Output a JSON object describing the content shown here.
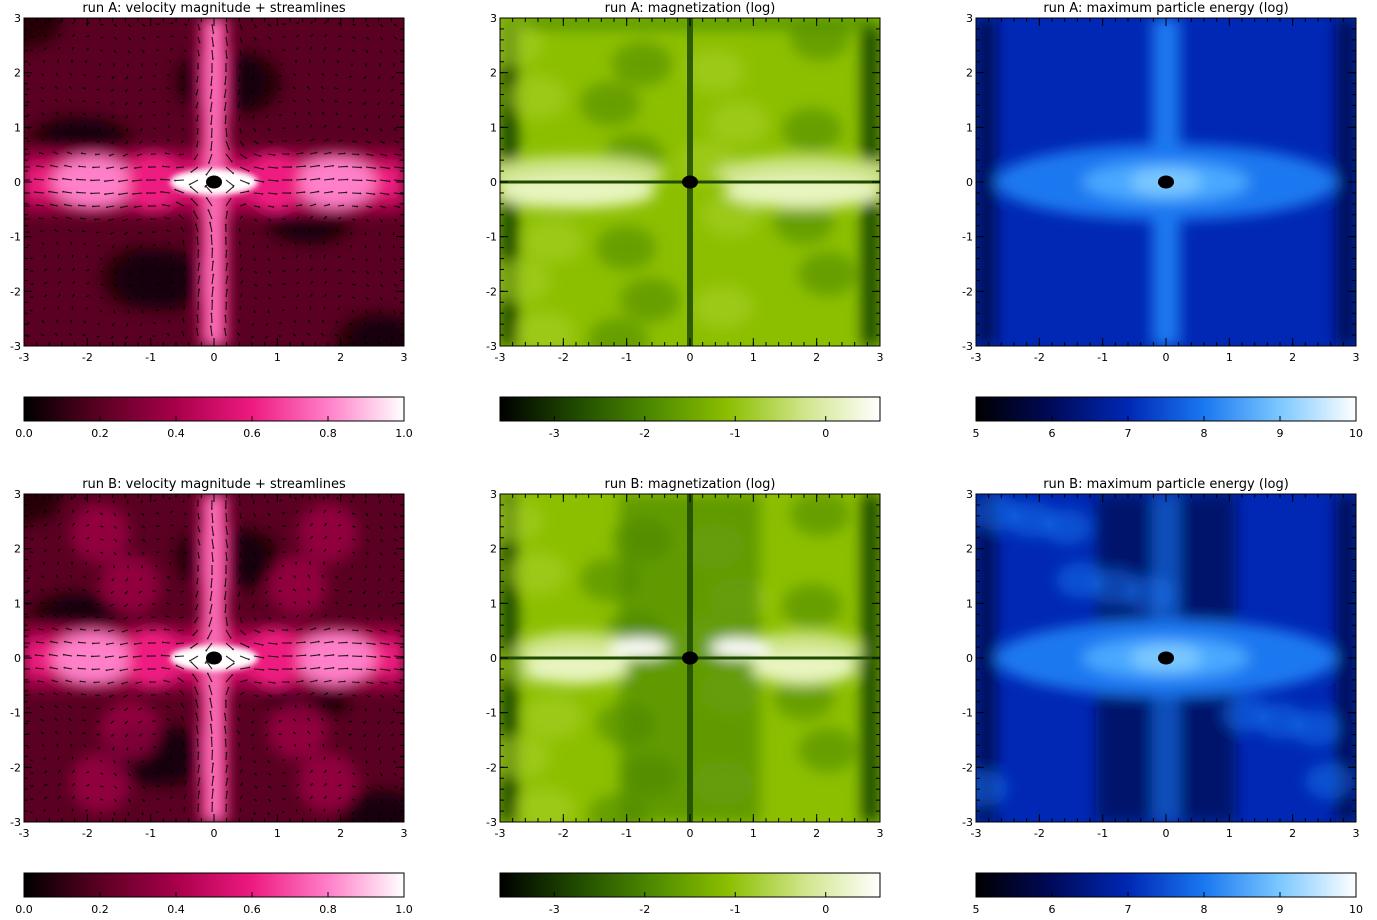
{
  "chart_data": [
    {
      "type": "heatmap",
      "title": "run A: velocity magnitude + streamlines",
      "xlim": [
        -3,
        3
      ],
      "ylim": [
        -3,
        3
      ],
      "x_ticks": [
        "-3",
        "-2",
        "-1",
        "0",
        "1",
        "2",
        "3"
      ],
      "y_ticks": [
        "-3",
        "-2",
        "-1",
        "0",
        "1",
        "2",
        "3"
      ],
      "colormap": [
        "#000000",
        "#5a0022",
        "#a8004a",
        "#ee1a80",
        "#ff7fc8",
        "#ffffff"
      ],
      "colorbar": {
        "range": [
          0.0,
          1.0
        ],
        "ticks": [
          "0.0",
          "0.2",
          "0.4",
          "0.6",
          "0.8",
          "1.0"
        ]
      },
      "overlay": "streamline-arrows",
      "theme": "pink",
      "run": "A"
    },
    {
      "type": "heatmap",
      "title": "run A: magnetization (log)",
      "xlim": [
        -3,
        3
      ],
      "ylim": [
        -3,
        3
      ],
      "x_ticks": [
        "-3",
        "-2",
        "-1",
        "0",
        "1",
        "2",
        "3"
      ],
      "y_ticks": [
        "-3",
        "-2",
        "-1",
        "0",
        "1",
        "2",
        "3"
      ],
      "colormap": [
        "#000000",
        "#1f4a00",
        "#4e8a00",
        "#8cbf00",
        "#cfe58a",
        "#ffffff"
      ],
      "colorbar": {
        "range": [
          -3.6,
          0.6
        ],
        "ticks": [
          "-3",
          "-2",
          "-1",
          "0"
        ]
      },
      "theme": "green",
      "run": "A"
    },
    {
      "type": "heatmap",
      "title": "run A: maximum particle energy (log)",
      "xlim": [
        -3,
        3
      ],
      "ylim": [
        -3,
        3
      ],
      "x_ticks": [
        "-3",
        "-2",
        "-1",
        "0",
        "1",
        "2",
        "3"
      ],
      "y_ticks": [
        "-3",
        "-2",
        "-1",
        "0",
        "1",
        "2",
        "3"
      ],
      "colormap": [
        "#000000",
        "#000a5a",
        "#0028b4",
        "#1a78f0",
        "#7cc8ff",
        "#ffffff"
      ],
      "colorbar": {
        "range": [
          5,
          10
        ],
        "ticks": [
          "5",
          "6",
          "7",
          "8",
          "9",
          "10"
        ]
      },
      "theme": "blue",
      "run": "A"
    },
    {
      "type": "heatmap",
      "title": "run B: velocity magnitude + streamlines",
      "xlim": [
        -3,
        3
      ],
      "ylim": [
        -3,
        3
      ],
      "x_ticks": [
        "-3",
        "-2",
        "-1",
        "0",
        "1",
        "2",
        "3"
      ],
      "y_ticks": [
        "-3",
        "-2",
        "-1",
        "0",
        "1",
        "2",
        "3"
      ],
      "colormap": [
        "#000000",
        "#5a0022",
        "#a8004a",
        "#ee1a80",
        "#ff7fc8",
        "#ffffff"
      ],
      "colorbar": {
        "range": [
          0.0,
          1.0
        ],
        "ticks": [
          "0.0",
          "0.2",
          "0.4",
          "0.6",
          "0.8",
          "1.0"
        ]
      },
      "overlay": "streamline-arrows",
      "theme": "pink",
      "run": "B"
    },
    {
      "type": "heatmap",
      "title": "run B: magnetization (log)",
      "xlim": [
        -3,
        3
      ],
      "ylim": [
        -3,
        3
      ],
      "x_ticks": [
        "-3",
        "-2",
        "-1",
        "0",
        "1",
        "2",
        "3"
      ],
      "y_ticks": [
        "-3",
        "-2",
        "-1",
        "0",
        "1",
        "2",
        "3"
      ],
      "colormap": [
        "#000000",
        "#1f4a00",
        "#4e8a00",
        "#8cbf00",
        "#cfe58a",
        "#ffffff"
      ],
      "colorbar": {
        "range": [
          -3.6,
          0.6
        ],
        "ticks": [
          "-3",
          "-2",
          "-1",
          "0"
        ]
      },
      "theme": "green",
      "run": "B"
    },
    {
      "type": "heatmap",
      "title": "run B: maximum particle energy (log)",
      "xlim": [
        -3,
        3
      ],
      "ylim": [
        -3,
        3
      ],
      "x_ticks": [
        "-3",
        "-2",
        "-1",
        "0",
        "1",
        "2",
        "3"
      ],
      "y_ticks": [
        "-3",
        "-2",
        "-1",
        "0",
        "1",
        "2",
        "3"
      ],
      "colormap": [
        "#000000",
        "#000a5a",
        "#0028b4",
        "#1a78f0",
        "#7cc8ff",
        "#ffffff"
      ],
      "colorbar": {
        "range": [
          5,
          10
        ],
        "ticks": [
          "5",
          "6",
          "7",
          "8",
          "9",
          "10"
        ]
      },
      "theme": "blue",
      "run": "B"
    }
  ]
}
